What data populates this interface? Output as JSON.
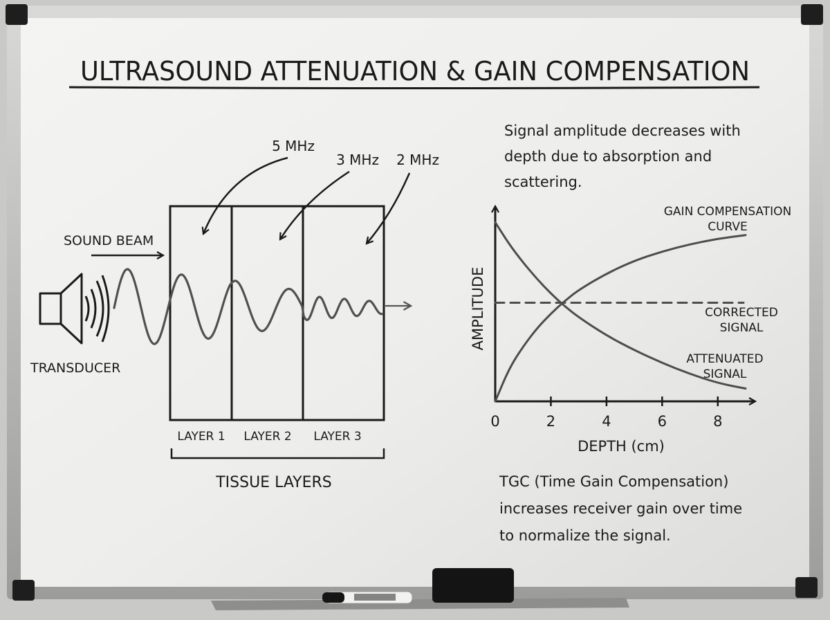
{
  "title": "ULTRASOUND ATTENUATION & GAIN COMPENSATION",
  "diagram": {
    "transducer_label": "TRANSDUCER",
    "beam_label": "SOUND BEAM",
    "frequencies": [
      "5 MHz",
      "3 MHz",
      "2 MHz"
    ],
    "layers": [
      "LAYER 1",
      "LAYER 2",
      "LAYER 3"
    ],
    "tissue_label": "TISSUE LAYERS"
  },
  "note_top": [
    "Signal amplitude decreases with",
    "depth due to absorption and",
    "scattering."
  ],
  "note_bottom": [
    "TGC (Time Gain Compensation)",
    "increases receiver gain over time",
    "to normalize the signal."
  ],
  "chart_data": {
    "type": "line",
    "xlabel": "DEPTH (cm)",
    "ylabel": "AMPLITUDE",
    "x_ticks": [
      "0",
      "2",
      "4",
      "6",
      "8"
    ],
    "xlim": [
      0,
      9
    ],
    "ylim": [
      0,
      1
    ],
    "series": [
      {
        "name": "GAIN COMPENSATION CURVE",
        "label_lines": [
          "GAIN COMPENSATION",
          "CURVE"
        ],
        "style": "solid",
        "x": [
          0,
          0.5,
          1,
          1.5,
          2,
          2.5,
          3,
          4,
          5,
          6,
          7,
          8,
          9
        ],
        "y": [
          0.0,
          0.18,
          0.3,
          0.4,
          0.48,
          0.55,
          0.61,
          0.7,
          0.77,
          0.82,
          0.86,
          0.89,
          0.91
        ]
      },
      {
        "name": "CORRECTED SIGNAL",
        "label_lines": [
          "CORRECTED",
          "SIGNAL"
        ],
        "style": "dashed",
        "x": [
          0,
          9
        ],
        "y": [
          0.54,
          0.54
        ]
      },
      {
        "name": "ATTENUATED SIGNAL",
        "label_lines": [
          "ATTENUATED",
          "SIGNAL"
        ],
        "style": "solid",
        "x": [
          0,
          0.5,
          1,
          1.5,
          2,
          2.5,
          3,
          4,
          5,
          6,
          7,
          8,
          9
        ],
        "y": [
          0.98,
          0.86,
          0.76,
          0.67,
          0.59,
          0.52,
          0.46,
          0.36,
          0.28,
          0.21,
          0.15,
          0.1,
          0.07
        ]
      }
    ]
  }
}
